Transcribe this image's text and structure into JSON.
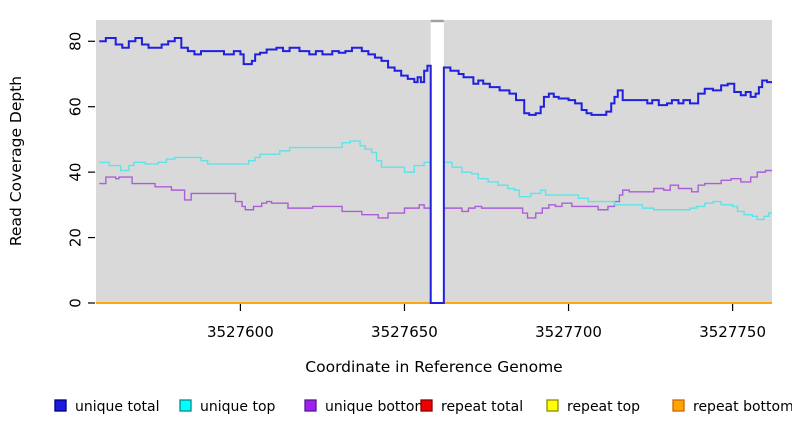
{
  "figure": {
    "xlabel": "Coordinate in Reference Genome",
    "ylabel": "Read Coverage Depth"
  },
  "chart_data": {
    "type": "line",
    "subtype": "step",
    "title": "",
    "xlabel": "Coordinate in Reference Genome",
    "ylabel": "Read Coverage Depth",
    "xlim": [
      3527556,
      3527762
    ],
    "ylim": [
      0,
      86.5
    ],
    "x_ticks": [
      3527600,
      3527650,
      3527700,
      3527750
    ],
    "y_ticks": [
      0,
      20,
      40,
      60,
      80
    ],
    "grid": false,
    "plot_background": "#d9d9d9",
    "legend_position": "bottom",
    "gap_region": {
      "x1": 3527658,
      "x2": 3527662,
      "fill": "#ffffff",
      "cap_color": "#a0a0a0",
      "note": "no-data gap; all series drop to 0"
    },
    "series": [
      {
        "name": "unique total",
        "color": "#2020dd",
        "legend_fill": "#1c1cdd",
        "legend_border": "#000080",
        "width": 2,
        "points": [
          [
            3527557,
            80
          ],
          [
            3527559,
            81
          ],
          [
            3527562,
            79
          ],
          [
            3527564,
            78
          ],
          [
            3527566,
            80
          ],
          [
            3527568,
            81
          ],
          [
            3527570,
            79
          ],
          [
            3527572,
            78
          ],
          [
            3527576,
            79
          ],
          [
            3527578,
            80
          ],
          [
            3527580,
            81
          ],
          [
            3527582,
            78
          ],
          [
            3527584,
            77
          ],
          [
            3527586,
            76
          ],
          [
            3527588,
            77
          ],
          [
            3527595,
            76
          ],
          [
            3527598,
            77
          ],
          [
            3527600,
            76
          ],
          [
            3527601,
            73
          ],
          [
            3527603.5,
            74
          ],
          [
            3527604.5,
            76
          ],
          [
            3527606,
            76.5
          ],
          [
            3527608,
            77.5
          ],
          [
            3527611,
            78
          ],
          [
            3527613,
            77
          ],
          [
            3527615,
            78
          ],
          [
            3527618,
            77
          ],
          [
            3527621,
            76
          ],
          [
            3527623,
            77
          ],
          [
            3527625,
            76
          ],
          [
            3527628,
            77
          ],
          [
            3527630,
            76.5
          ],
          [
            3527632,
            77
          ],
          [
            3527634,
            78
          ],
          [
            3527637,
            77
          ],
          [
            3527639,
            76
          ],
          [
            3527641,
            75
          ],
          [
            3527643,
            74
          ],
          [
            3527645,
            72
          ],
          [
            3527647,
            71
          ],
          [
            3527649,
            69.5
          ],
          [
            3527651,
            68.5
          ],
          [
            3527653,
            67.5
          ],
          [
            3527654,
            69
          ],
          [
            3527655,
            67.5
          ],
          [
            3527656,
            71
          ],
          [
            3527657,
            72.5
          ],
          [
            3527658,
            0
          ],
          [
            3527662,
            72
          ],
          [
            3527664,
            71
          ],
          [
            3527666.5,
            70
          ],
          [
            3527668,
            69
          ],
          [
            3527671,
            67
          ],
          [
            3527672.5,
            68
          ],
          [
            3527674,
            67
          ],
          [
            3527676,
            66
          ],
          [
            3527679,
            65
          ],
          [
            3527682,
            64
          ],
          [
            3527684,
            62
          ],
          [
            3527686.5,
            58
          ],
          [
            3527688,
            57.5
          ],
          [
            3527690,
            58
          ],
          [
            3527691.5,
            60
          ],
          [
            3527692.5,
            63
          ],
          [
            3527694,
            64
          ],
          [
            3527695.5,
            63
          ],
          [
            3527697,
            62.5
          ],
          [
            3527700,
            62
          ],
          [
            3527702,
            61
          ],
          [
            3527704,
            59
          ],
          [
            3527705.5,
            58
          ],
          [
            3527707,
            57.5
          ],
          [
            3527711.5,
            58.5
          ],
          [
            3527713,
            61
          ],
          [
            3527714,
            63
          ],
          [
            3527715,
            65
          ],
          [
            3527716.5,
            62
          ],
          [
            3527724,
            61
          ],
          [
            3527725.5,
            62
          ],
          [
            3527727.5,
            60.5
          ],
          [
            3527730,
            61
          ],
          [
            3527731.5,
            62
          ],
          [
            3527733.5,
            61
          ],
          [
            3527735,
            62
          ],
          [
            3527737,
            61
          ],
          [
            3527739.5,
            64
          ],
          [
            3527741.5,
            65.5
          ],
          [
            3527744,
            65
          ],
          [
            3527746.5,
            66.5
          ],
          [
            3527748.5,
            67
          ],
          [
            3527750.5,
            64.5
          ],
          [
            3527752.5,
            63.5
          ],
          [
            3527754,
            64.5
          ],
          [
            3527755.5,
            63
          ],
          [
            3527757,
            64
          ],
          [
            3527758,
            66
          ],
          [
            3527759,
            68
          ],
          [
            3527760.5,
            67.5
          ]
        ]
      },
      {
        "name": "unique top",
        "color": "#5ee3e8",
        "legend_fill": "#00ffff",
        "legend_border": "#008b8b",
        "width": 1.4,
        "points": [
          [
            3527557,
            43
          ],
          [
            3527560,
            42
          ],
          [
            3527563.5,
            40.5
          ],
          [
            3527566,
            42
          ],
          [
            3527567.5,
            43
          ],
          [
            3527571,
            42.5
          ],
          [
            3527575,
            43
          ],
          [
            3527577.5,
            44
          ],
          [
            3527580,
            44.5
          ],
          [
            3527588,
            43.5
          ],
          [
            3527590,
            42.5
          ],
          [
            3527602.5,
            43.5
          ],
          [
            3527604.5,
            44.5
          ],
          [
            3527606,
            45.5
          ],
          [
            3527612,
            46.5
          ],
          [
            3527615,
            47.5
          ],
          [
            3527631,
            49
          ],
          [
            3527633.5,
            49.5
          ],
          [
            3527636.5,
            48
          ],
          [
            3527638,
            47
          ],
          [
            3527640,
            46
          ],
          [
            3527641.5,
            43.5
          ],
          [
            3527643,
            41.5
          ],
          [
            3527650,
            40
          ],
          [
            3527653,
            42
          ],
          [
            3527656,
            43
          ],
          [
            3527658,
            0
          ],
          [
            3527662,
            43
          ],
          [
            3527664.5,
            41.5
          ],
          [
            3527667.5,
            40
          ],
          [
            3527670.5,
            39.5
          ],
          [
            3527672.5,
            38
          ],
          [
            3527675.5,
            37
          ],
          [
            3527678.5,
            36
          ],
          [
            3527681.5,
            35
          ],
          [
            3527683.5,
            34.5
          ],
          [
            3527685,
            32.5
          ],
          [
            3527688.5,
            33.5
          ],
          [
            3527691.5,
            34.5
          ],
          [
            3527693,
            33
          ],
          [
            3527703,
            32
          ],
          [
            3527706,
            31
          ],
          [
            3527714,
            30
          ],
          [
            3527722.5,
            29
          ],
          [
            3527726,
            28.5
          ],
          [
            3527737,
            29
          ],
          [
            3527739,
            29.5
          ],
          [
            3527741.5,
            30.5
          ],
          [
            3527744,
            31
          ],
          [
            3527746.5,
            30
          ],
          [
            3527750,
            29.5
          ],
          [
            3527751.5,
            28
          ],
          [
            3527753.5,
            27
          ],
          [
            3527756,
            26.5
          ],
          [
            3527757.5,
            25.5
          ],
          [
            3527759.5,
            26.5
          ],
          [
            3527761,
            27.5
          ]
        ]
      },
      {
        "name": "unique bottom",
        "color": "#ab5fd6",
        "legend_fill": "#a020f0",
        "legend_border": "#551a8b",
        "width": 1.4,
        "points": [
          [
            3527557,
            36.5
          ],
          [
            3527559,
            38.5
          ],
          [
            3527562,
            38
          ],
          [
            3527563,
            38.5
          ],
          [
            3527567,
            36.5
          ],
          [
            3527574,
            35.5
          ],
          [
            3527579,
            34.5
          ],
          [
            3527583,
            31.5
          ],
          [
            3527585,
            33.5
          ],
          [
            3527598.5,
            31
          ],
          [
            3527600.5,
            29.5
          ],
          [
            3527601.5,
            28.5
          ],
          [
            3527604,
            29.5
          ],
          [
            3527606.5,
            30.5
          ],
          [
            3527608,
            31
          ],
          [
            3527609.5,
            30.5
          ],
          [
            3527614.5,
            29
          ],
          [
            3527622,
            29.5
          ],
          [
            3527631,
            28
          ],
          [
            3527637,
            27
          ],
          [
            3527642,
            26
          ],
          [
            3527645,
            27.5
          ],
          [
            3527650,
            29
          ],
          [
            3527654.5,
            30
          ],
          [
            3527656,
            29
          ],
          [
            3527658,
            0
          ],
          [
            3527662,
            29
          ],
          [
            3527667.5,
            28
          ],
          [
            3527669.5,
            29
          ],
          [
            3527671.5,
            29.5
          ],
          [
            3527673.5,
            29
          ],
          [
            3527686,
            27.5
          ],
          [
            3527687.5,
            26
          ],
          [
            3527690,
            27.5
          ],
          [
            3527692,
            29
          ],
          [
            3527694,
            30
          ],
          [
            3527696,
            29.5
          ],
          [
            3527698,
            30.5
          ],
          [
            3527701,
            29.5
          ],
          [
            3527709,
            28.5
          ],
          [
            3527712,
            29.5
          ],
          [
            3527714,
            31
          ],
          [
            3527715.5,
            33
          ],
          [
            3527716.5,
            34.5
          ],
          [
            3527718.5,
            34
          ],
          [
            3527726,
            35
          ],
          [
            3527729,
            34.5
          ],
          [
            3527731,
            36
          ],
          [
            3527733.5,
            35
          ],
          [
            3527737.5,
            34
          ],
          [
            3527739.5,
            36
          ],
          [
            3527741.5,
            36.5
          ],
          [
            3527746.5,
            37.5
          ],
          [
            3527749.5,
            38
          ],
          [
            3527752.5,
            37
          ],
          [
            3527755.5,
            38.5
          ],
          [
            3527757.5,
            40
          ],
          [
            3527760,
            40.5
          ]
        ]
      },
      {
        "name": "repeat total",
        "color": "#dd0000",
        "legend_fill": "#ee0000",
        "legend_border": "#8b0000",
        "width": 1.2,
        "points": [
          [
            3527556,
            0
          ]
        ]
      },
      {
        "name": "repeat top",
        "color": "#f5f500",
        "legend_fill": "#ffff00",
        "legend_border": "#8b8b00",
        "width": 1.2,
        "points": [
          [
            3527556,
            0
          ]
        ]
      },
      {
        "name": "repeat bottom",
        "color": "#ffa500",
        "legend_fill": "#ffa500",
        "legend_border": "#cd6600",
        "width": 1.8,
        "points": [
          [
            3527556,
            0
          ]
        ]
      }
    ],
    "draw_order": [
      "repeat total",
      "repeat top",
      "repeat bottom",
      "unique bottom",
      "unique top",
      "unique total"
    ]
  }
}
